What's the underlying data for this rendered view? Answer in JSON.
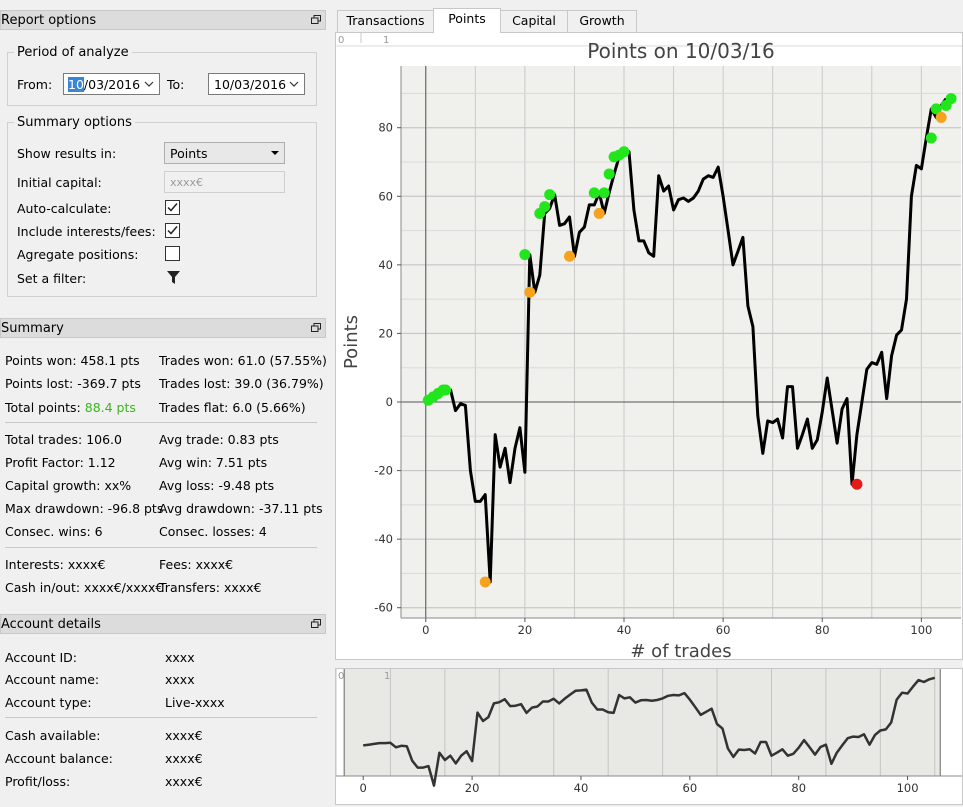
{
  "report_options": {
    "title": "Report options",
    "period": {
      "title": "Period of analyze",
      "from_label": "From:",
      "from_value_selected": "10",
      "from_value_rest": "/03/2016",
      "to_label": "To:",
      "to_value": "10/03/2016"
    },
    "summary_options": {
      "title": "Summary options",
      "show_results_label": "Show results in:",
      "show_results_value": "Points",
      "initial_capital_label": "Initial capital:",
      "initial_capital_placeholder": "xxxx€",
      "auto_calculate_label": "Auto-calculate:",
      "auto_calculate_checked": true,
      "include_interests_label": "Include interests/fees:",
      "include_interests_checked": true,
      "aggregate_label": "Agregate positions:",
      "aggregate_checked": false,
      "filter_label": "Set a filter:"
    }
  },
  "summary": {
    "title": "Summary",
    "points_won": "Points won: 458.1 pts",
    "trades_won": "Trades won: 61.0 (57.55%)",
    "points_lost": "Points lost: -369.7 pts",
    "trades_lost": "Trades lost: 39.0 (36.79%)",
    "total_points_label": "Total points: ",
    "total_points_value": "88.4 pts",
    "trades_flat": "Trades flat: 6.0 (5.66%)",
    "total_trades": "Total trades: 106.0",
    "avg_trade": "Avg trade: 0.83 pts",
    "profit_factor": "Profit Factor: 1.12",
    "avg_win": "Avg win: 7.51 pts",
    "capital_growth": "Capital growth: xx%",
    "avg_loss": "Avg loss: -9.48 pts",
    "max_drawdown": "Max drawdown: -96.8 pts",
    "avg_drawdown": "Avg drawdown: -37.11 pts",
    "consec_wins": "Consec. wins: 6",
    "consec_losses": "Consec. losses: 4",
    "interests": "Interests: xxxx€",
    "fees": "Fees: xxxx€",
    "cash_in_out": "Cash in/out: xxxx€/xxxx€",
    "transfers": "Transfers: xxxx€"
  },
  "account_details": {
    "title": "Account details",
    "rows": [
      {
        "label": "Account ID:",
        "value": "xxxx"
      },
      {
        "label": "Account name:",
        "value": "xxxx"
      },
      {
        "label": "Account type:",
        "value": "Live-xxxx"
      },
      {
        "label": "Cash available:",
        "value": "xxxx€"
      },
      {
        "label": "Account balance:",
        "value": "xxxx€"
      },
      {
        "label": "Profit/loss:",
        "value": "xxxx€"
      }
    ]
  },
  "tabs": [
    "Transactions",
    "Points",
    "Capital",
    "Growth"
  ],
  "active_tab": "Points",
  "colors": {
    "positive_text": "#3cb41e",
    "marker_high": "#22e61c",
    "marker_low": "#f5a21f",
    "marker_min": "#e61919",
    "line": "#000000"
  },
  "chart_data": {
    "type": "line",
    "title": "Points on 10/03/16",
    "xlabel": "# of trades",
    "ylabel": "Points",
    "xlim": [
      -5,
      108
    ],
    "ylim": [
      -63,
      98
    ],
    "x_ticks": [
      0,
      20,
      40,
      60,
      80,
      100
    ],
    "y_ticks": [
      -60,
      -40,
      -20,
      0,
      20,
      40,
      60,
      80
    ],
    "corner_labels": [
      "0",
      "1"
    ],
    "grid": true,
    "series": [
      {
        "values": [
          0,
          1,
          2,
          3,
          3,
          3.5,
          -2.5,
          -0.5,
          -1,
          -20,
          -29,
          -29,
          -27,
          -52.5,
          -9.5,
          -19,
          -13.5,
          -23.5,
          -13.5,
          -7.5,
          -20.5,
          43,
          32,
          37,
          55,
          56.5,
          60.5,
          51.5,
          52,
          54,
          42.5,
          49.5,
          51,
          57.5,
          57.5,
          61,
          55,
          61,
          66.5,
          71.5,
          72,
          73,
          56,
          47,
          47,
          43.5,
          42.5,
          66,
          61.5,
          63,
          56,
          59,
          59.5,
          58.5,
          59.5,
          61.5,
          65,
          66,
          65.5,
          68.5,
          60,
          50,
          40,
          44,
          48,
          28,
          22,
          -4,
          -15,
          -5.5,
          -6,
          -5,
          -10.5,
          4.5,
          4.5,
          -13.5,
          -9.5,
          -5,
          -13.5,
          -11,
          -3,
          7,
          -2.5,
          -12,
          -2,
          1,
          -24,
          -9.5,
          0,
          9.5,
          11.5,
          11,
          14.5,
          1,
          13.5,
          19.5,
          21,
          30,
          60,
          69,
          68,
          77,
          85.5,
          83,
          86.5,
          88.5
        ]
      }
    ],
    "markers": {
      "high": [
        [
          0.5,
          0.5
        ],
        [
          1.5,
          1.5
        ],
        [
          2.5,
          2.5
        ],
        [
          3.5,
          3.5
        ],
        [
          4,
          3.5
        ],
        [
          20,
          43
        ],
        [
          23,
          55
        ],
        [
          24,
          57
        ],
        [
          25,
          60.5
        ],
        [
          34,
          61
        ],
        [
          36,
          61
        ],
        [
          37,
          66.5
        ],
        [
          38,
          71.5
        ],
        [
          39,
          72
        ],
        [
          40,
          73
        ],
        [
          102,
          77
        ],
        [
          103,
          85.5
        ],
        [
          105,
          86.5
        ],
        [
          106,
          88.5
        ]
      ],
      "low": [
        [
          12,
          -52.5
        ],
        [
          21,
          32
        ],
        [
          29,
          42.5
        ],
        [
          35,
          55
        ],
        [
          104,
          83
        ]
      ],
      "min": [
        [
          87,
          -24
        ]
      ]
    },
    "navigator": {
      "xlim": [
        -5,
        110
      ],
      "ylim": [
        -40,
        100
      ],
      "x_ticks": [
        0,
        20,
        40,
        60,
        80,
        100
      ],
      "corner_labels": [
        "0",
        "1"
      ]
    }
  }
}
